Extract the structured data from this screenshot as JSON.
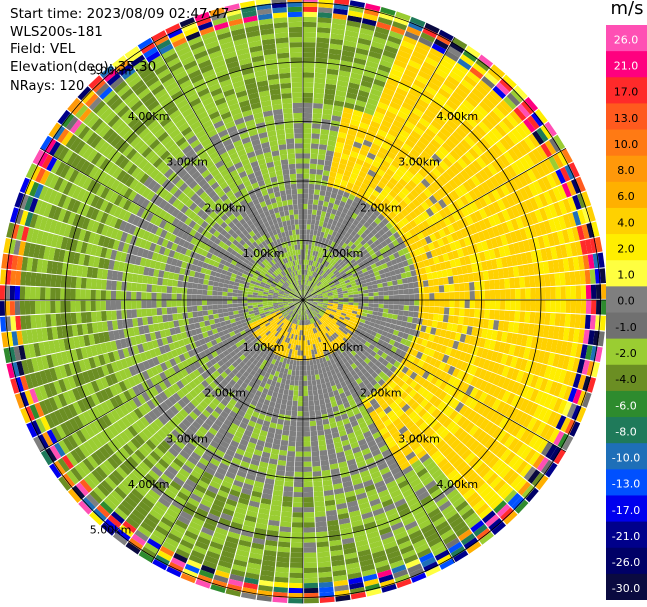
{
  "info": {
    "start_time": "Start time: 2023/08/09 02:47:47",
    "instrument": "WLS200s-181",
    "field": "Field: VEL",
    "elevation": "Elevation(deg): 35.30",
    "nrays": "NRays: 120"
  },
  "colorbar": {
    "unit": "m/s",
    "ticks": [
      "26.0",
      "21.0",
      "17.0",
      "13.0",
      "10.0",
      "8.0",
      "6.0",
      "4.0",
      "2.0",
      "1.0",
      "0.0",
      "-1.0",
      "-2.0",
      "-4.0",
      "-6.0",
      "-8.0",
      "-10.0",
      "-13.0",
      "-17.0",
      "-21.0",
      "-26.0",
      "-30.0"
    ],
    "colors": [
      "#ff4fb4",
      "#ff007f",
      "#ff2a2a",
      "#ff5a1e",
      "#ff7a14",
      "#ff980a",
      "#ffb000",
      "#ffd100",
      "#ffee00",
      "#ffff40",
      "#7f7f7f",
      "#707070",
      "#9acd32",
      "#6b8e23",
      "#2e8b2e",
      "#1f7a5a",
      "#1e6fb8",
      "#0050ff",
      "#0000ee",
      "#00008b",
      "#000066",
      "#0a0a40"
    ]
  },
  "chart_data": {
    "type": "heatmap",
    "projection": "polar (PPI)",
    "field": "VEL",
    "units": "m/s",
    "nrays": 120,
    "elevation_deg": 35.3,
    "range_ring_labels_km": [
      "1.00km",
      "2.00km",
      "3.00km",
      "4.00km",
      "5.00km"
    ],
    "ring_labels": [
      {
        "text": "1.00km",
        "bearing": 320
      },
      {
        "text": "1.00km",
        "bearing": 40
      },
      {
        "text": "1.00km",
        "bearing": 220
      },
      {
        "text": "1.00km",
        "bearing": 140
      },
      {
        "text": "2.00km",
        "bearing": 320
      },
      {
        "text": "2.00km",
        "bearing": 40
      },
      {
        "text": "2.00km",
        "bearing": 220
      },
      {
        "text": "2.00km",
        "bearing": 140
      },
      {
        "text": "3.00km",
        "bearing": 320
      },
      {
        "text": "3.00km",
        "bearing": 40
      },
      {
        "text": "3.00km",
        "bearing": 220
      },
      {
        "text": "3.00km",
        "bearing": 140
      },
      {
        "text": "4.00km",
        "bearing": 320
      },
      {
        "text": "4.00km",
        "bearing": 40
      },
      {
        "text": "4.00km",
        "bearing": 220
      },
      {
        "text": "4.00km",
        "bearing": 140
      },
      {
        "text": "5.00km",
        "bearing": 320
      },
      {
        "text": "5.00km",
        "bearing": 220
      }
    ],
    "colorbar_range": [
      -30.0,
      26.0
    ]
  }
}
